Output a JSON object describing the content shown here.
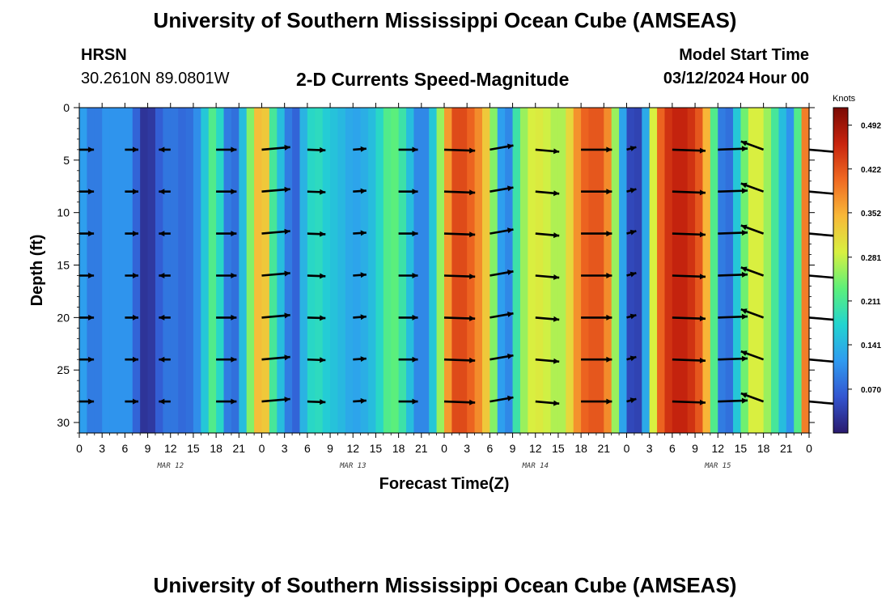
{
  "header": {
    "title": "University of Southern Mississippi Ocean Cube (AMSEAS)",
    "station": "HRSN",
    "coords": "30.2610N  89.0801W",
    "subtitle": "2-D Currents Speed-Magnitude",
    "model_start_label": "Model Start Time",
    "model_start_value": "03/12/2024 Hour 00"
  },
  "footer": {
    "title": "University of Southern Mississippi Ocean Cube (AMSEAS)"
  },
  "colors": {
    "arrow": "#000000",
    "colormap": [
      "#2a1a6e",
      "#3355d0",
      "#2f9bf0",
      "#22d4d0",
      "#5cf07a",
      "#d8f040",
      "#f8b838",
      "#f06a22",
      "#c8240e",
      "#7a0a04"
    ]
  },
  "chart_data": {
    "type": "heatmap",
    "title": "2-D Currents Speed-Magnitude",
    "xlabel": "Forecast Time(Z)",
    "ylabel": "Depth (ft)",
    "units": "Knots",
    "x_range_hours": [
      0,
      96
    ],
    "ylim": [
      0,
      31
    ],
    "y_inverted": true,
    "x_ticks": [
      "0",
      "3",
      "6",
      "9",
      "12",
      "15",
      "18",
      "21",
      "0",
      "3",
      "6",
      "9",
      "12",
      "15",
      "18",
      "21",
      "0",
      "3",
      "6",
      "9",
      "12",
      "15",
      "18",
      "21",
      "0",
      "3",
      "6",
      "9",
      "12",
      "15",
      "18",
      "21",
      "0"
    ],
    "y_ticks": [
      0,
      5,
      10,
      15,
      20,
      25,
      30
    ],
    "day_labels": [
      {
        "label": "MAR 12",
        "hour": 12
      },
      {
        "label": "MAR 13",
        "hour": 36
      },
      {
        "label": "MAR 14",
        "hour": 60
      },
      {
        "label": "MAR 15",
        "hour": 84
      }
    ],
    "colorbar": {
      "min": 0,
      "max": 0.52,
      "labels": [
        0.07,
        0.141,
        0.211,
        0.281,
        0.352,
        0.422,
        0.492
      ],
      "label_text": [
        "0.070",
        "0.141",
        "0.211",
        "0.281",
        "0.352",
        "0.422",
        "0.492"
      ]
    },
    "speed_profile": {
      "hours": [
        0,
        1,
        2,
        3,
        4,
        5,
        6,
        7,
        8,
        9,
        10,
        11,
        12,
        13,
        14,
        15,
        16,
        17,
        18,
        19,
        20,
        21,
        22,
        23,
        24,
        25,
        26,
        27,
        28,
        29,
        30,
        31,
        32,
        33,
        34,
        35,
        36,
        37,
        38,
        39,
        40,
        41,
        42,
        43,
        44,
        45,
        46,
        47,
        48,
        49,
        50,
        51,
        52,
        53,
        54,
        55,
        56,
        57,
        58,
        59,
        60,
        61,
        62,
        63,
        64,
        65,
        66,
        67,
        68,
        69,
        70,
        71,
        72,
        73,
        74,
        75,
        76,
        77,
        78,
        79,
        80,
        81,
        82,
        83,
        84,
        85,
        86,
        87,
        88,
        89,
        90,
        91,
        92,
        93,
        94,
        95,
        96
      ],
      "knots": [
        0.14,
        0.1,
        0.08,
        0.1,
        0.12,
        0.1,
        0.12,
        0.1,
        0.04,
        0.01,
        0.05,
        0.08,
        0.09,
        0.08,
        0.07,
        0.09,
        0.12,
        0.2,
        0.24,
        0.12,
        0.06,
        0.1,
        0.2,
        0.3,
        0.38,
        0.28,
        0.14,
        0.16,
        0.02,
        0.12,
        0.16,
        0.2,
        0.17,
        0.16,
        0.15,
        0.14,
        0.12,
        0.13,
        0.14,
        0.16,
        0.2,
        0.24,
        0.22,
        0.18,
        0.12,
        0.08,
        0.12,
        0.2,
        0.32,
        0.42,
        0.44,
        0.42,
        0.4,
        0.36,
        0.3,
        0.2,
        0.04,
        0.16,
        0.24,
        0.28,
        0.3,
        0.29,
        0.28,
        0.26,
        0.28,
        0.35,
        0.4,
        0.42,
        0.42,
        0.42,
        0.34,
        0.18,
        0.07,
        0.02,
        0.06,
        0.2,
        0.38,
        0.44,
        0.46,
        0.47,
        0.46,
        0.44,
        0.4,
        0.3,
        0.14,
        0.04,
        0.12,
        0.2,
        0.28,
        0.3,
        0.28,
        0.24,
        0.18,
        0.12,
        0.1,
        0.34,
        0.44
      ]
    },
    "vectors": {
      "hours": [
        0,
        6,
        12,
        18,
        24,
        30,
        36,
        42,
        48,
        54,
        60,
        66,
        72,
        78,
        84,
        90,
        96
      ],
      "depths_ft": [
        4,
        8,
        12,
        16,
        20,
        24,
        28
      ],
      "directions_deg": [
        90,
        90,
        270,
        90,
        85,
        92,
        86,
        90,
        92,
        80,
        95,
        90,
        75,
        92,
        88,
        290,
        95
      ],
      "magnitudes": [
        0.14,
        0.12,
        0.09,
        0.24,
        0.38,
        0.2,
        0.12,
        0.22,
        0.42,
        0.3,
        0.3,
        0.42,
        0.06,
        0.46,
        0.4,
        0.3,
        0.44
      ]
    }
  }
}
